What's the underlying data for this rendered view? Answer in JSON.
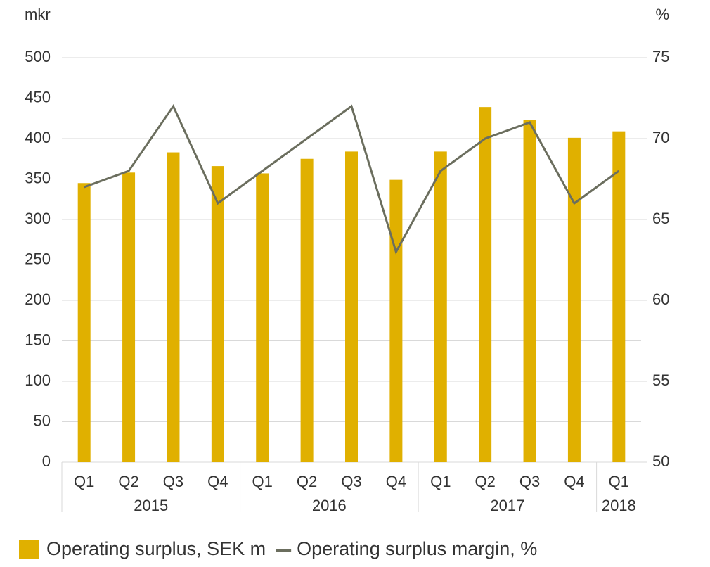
{
  "chart_data": {
    "type": "bar",
    "y_unit": "mkr",
    "y2_unit": "%",
    "categories": [
      "Q1",
      "Q2",
      "Q3",
      "Q4",
      "Q1",
      "Q2",
      "Q3",
      "Q4",
      "Q1",
      "Q2",
      "Q3",
      "Q4",
      "Q1"
    ],
    "x_groups": [
      {
        "label": "2015",
        "count": 4
      },
      {
        "label": "2016",
        "count": 4
      },
      {
        "label": "2017",
        "count": 4
      },
      {
        "label": "2018",
        "count": 1
      }
    ],
    "series": [
      {
        "name": "Operating surplus, SEK m",
        "type": "bar",
        "color": "#e0b000",
        "values": [
          345,
          358,
          383,
          366,
          357,
          375,
          384,
          349,
          384,
          439,
          423,
          401,
          409
        ]
      },
      {
        "name": "Operating surplus margin, %",
        "type": "line",
        "axis": "y2",
        "color": "#6b6e5e",
        "values": [
          67,
          68,
          72,
          66,
          68,
          70,
          72,
          63,
          68,
          70,
          71,
          66,
          68
        ]
      }
    ],
    "ylim": [
      0,
      500
    ],
    "yticks": [
      0,
      50,
      100,
      150,
      200,
      250,
      300,
      350,
      400,
      450,
      500
    ],
    "y2lim": [
      50,
      75
    ],
    "y2ticks": [
      50,
      55,
      60,
      65,
      70,
      75
    ],
    "grid": true
  }
}
